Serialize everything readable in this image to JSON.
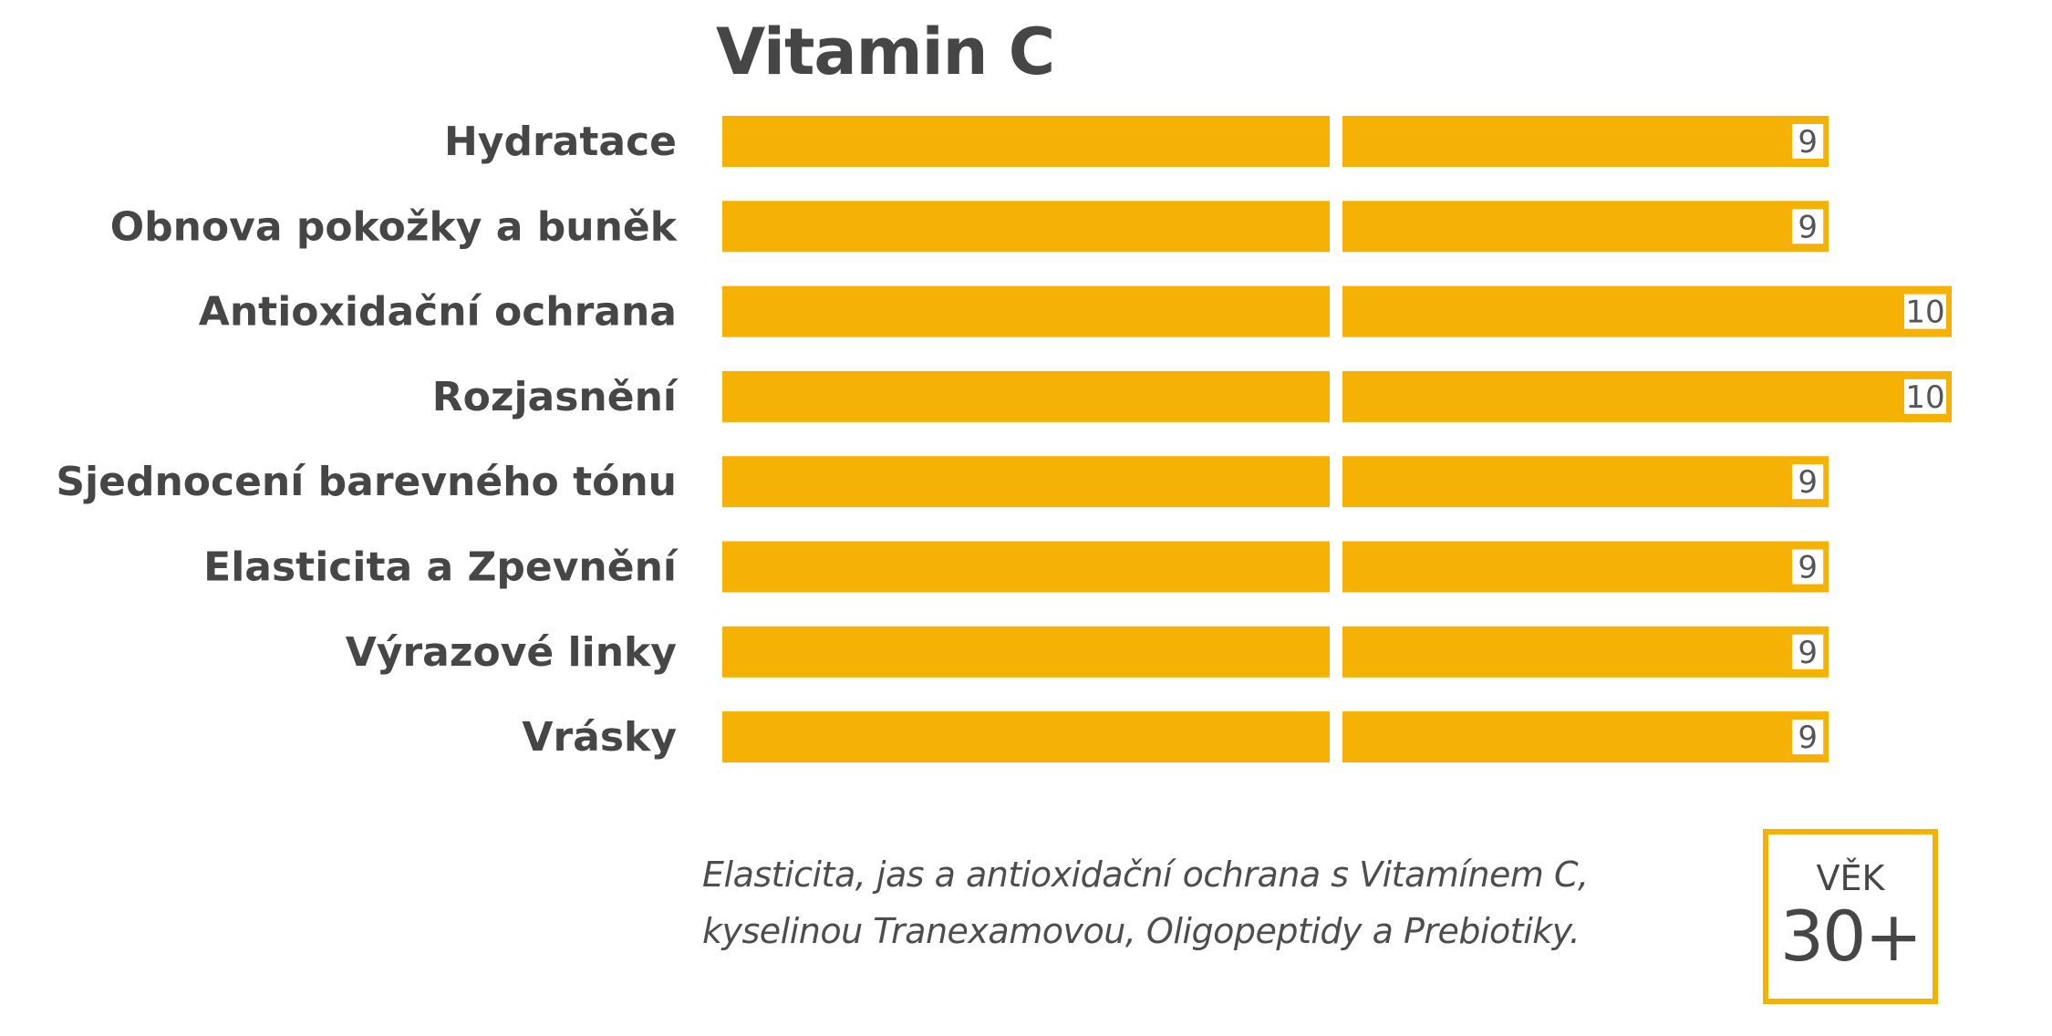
{
  "chart_data": {
    "type": "bar",
    "orientation": "horizontal",
    "title": "Vitamin C",
    "categories": [
      "Hydratace",
      "Obnova pokožky a buněk",
      "Antioxidační ochrana",
      "Rozjasnění",
      "Sjednocení barevného tónu",
      "Elasticita a Zpevnění",
      "Výrazové linky",
      "Vrásky"
    ],
    "values": [
      9,
      9,
      10,
      10,
      9,
      9,
      9,
      9
    ],
    "value_labels": [
      "9",
      "9",
      "10",
      "10",
      "9",
      "9",
      "9",
      "9"
    ],
    "xlim": [
      0,
      10
    ],
    "grid": false,
    "legend": "none",
    "bar_color": "#F5B104"
  },
  "description": {
    "line1": "Elasticita, jas a antioxidační ochrana s Vitamínem C,",
    "line2": "kyselinou Tranexamovou, Oligopeptidy a Prebiotiky."
  },
  "age_badge": {
    "label": "VĚK",
    "value": "30+",
    "border_color": "#F5B104"
  }
}
